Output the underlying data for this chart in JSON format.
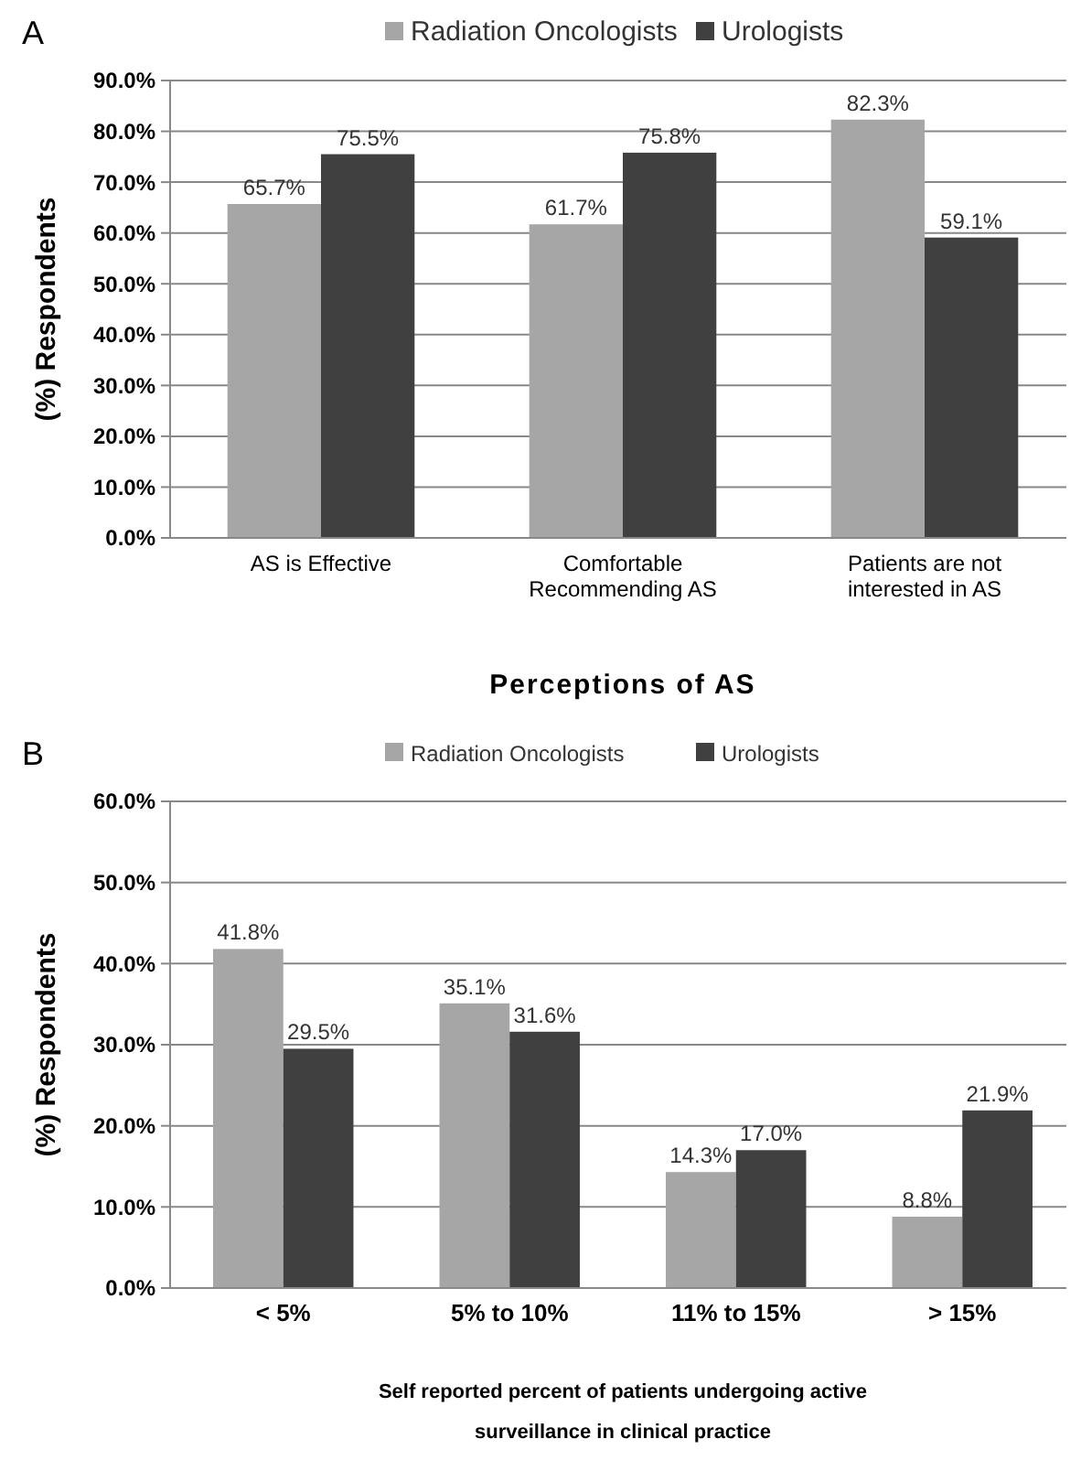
{
  "chart_data": [
    {
      "type": "bar",
      "annotations": [
        "A"
      ],
      "categories": [
        "AS is Effective",
        "Comfortable Recommending AS",
        "Patients are not interested in AS"
      ],
      "xlabel": "Perceptions of AS",
      "ylabel": "(%) Respondents",
      "ylim": [
        0,
        90
      ],
      "yticks": [
        {
          "value": 0,
          "label": "0.0%"
        },
        {
          "value": 10,
          "label": "10.0%"
        },
        {
          "value": 20,
          "label": "20.0%"
        },
        {
          "value": 30,
          "label": "30.0%"
        },
        {
          "value": 40,
          "label": "40.0%"
        },
        {
          "value": 50,
          "label": "50.0%"
        },
        {
          "value": 60,
          "label": "60.0%"
        },
        {
          "value": 70,
          "label": "70.0%"
        },
        {
          "value": 80,
          "label": "80.0%"
        },
        {
          "value": 90,
          "label": "90.0%"
        }
      ],
      "grid": "y",
      "legend": "top",
      "series": [
        {
          "name": "Radiation Oncologists",
          "color": "#a6a6a6",
          "values": [
            65.7,
            61.7,
            82.3
          ],
          "value_labels": [
            "65.7%",
            "61.7%",
            "82.3%"
          ]
        },
        {
          "name": "Urologists",
          "color": "#404040",
          "values": [
            75.5,
            75.8,
            59.1
          ],
          "value_labels": [
            "75.5%",
            "75.8%",
            "59.1%"
          ]
        }
      ]
    },
    {
      "type": "bar",
      "annotations": [
        "B"
      ],
      "categories": [
        "< 5%",
        "5% to 10%",
        "11% to 15%",
        "> 15%"
      ],
      "xlabel": "Self reported percent of patients undergoing active surveillance in clinical practice",
      "ylabel": "(%) Respondents",
      "ylim": [
        0,
        60
      ],
      "yticks": [
        {
          "value": 0,
          "label": "0.0%"
        },
        {
          "value": 10,
          "label": "10.0%"
        },
        {
          "value": 20,
          "label": "20.0%"
        },
        {
          "value": 30,
          "label": "30.0%"
        },
        {
          "value": 40,
          "label": "40.0%"
        },
        {
          "value": 50,
          "label": "50.0%"
        },
        {
          "value": 60,
          "label": "60.0%"
        }
      ],
      "grid": "y",
      "legend": "top",
      "series": [
        {
          "name": "Radiation Oncologists",
          "color": "#a6a6a6",
          "values": [
            41.8,
            35.1,
            14.3,
            8.8
          ],
          "value_labels": [
            "41.8%",
            "35.1%",
            "14.3%",
            "8.8%"
          ]
        },
        {
          "name": "Urologists",
          "color": "#404040",
          "values": [
            29.5,
            31.6,
            17.0,
            21.9
          ],
          "value_labels": [
            "29.5%",
            "31.6%",
            "17.0%",
            "21.9%"
          ]
        }
      ]
    }
  ]
}
